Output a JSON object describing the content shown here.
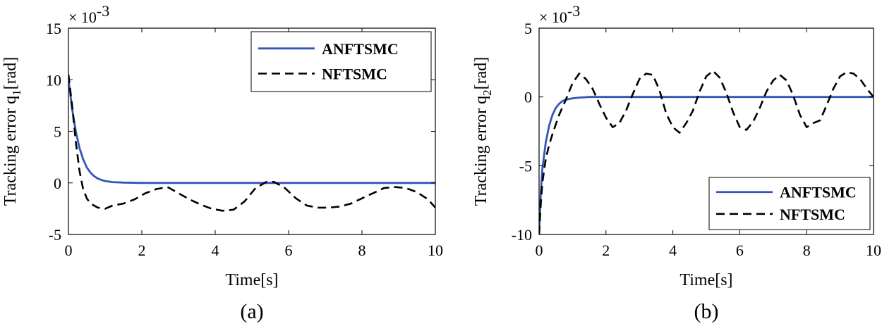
{
  "chart_data": [
    {
      "type": "line",
      "panel_label": "(a)",
      "xlabel": "Time[s]",
      "ylabel_main": "Tracking error q",
      "ylabel_sub": "1",
      "ylabel_unit": "[rad]",
      "scale_base": "× 10",
      "scale_exp": "-3",
      "xlim": [
        0,
        10
      ],
      "ylim": [
        -5,
        15
      ],
      "xticks": [
        0,
        2,
        4,
        6,
        8,
        10
      ],
      "yticks": [
        -5,
        0,
        5,
        10,
        15
      ],
      "legend": [
        "ANFTSMC",
        "NFTSMC"
      ],
      "legend_position": "top-right",
      "series": [
        {
          "name": "ANFTSMC",
          "color": "#3355b8",
          "style": "solid",
          "x": [
            0,
            0.1,
            0.2,
            0.3,
            0.4,
            0.5,
            0.6,
            0.7,
            0.8,
            0.9,
            1.0,
            1.2,
            1.5,
            2.0,
            3.0,
            4.0,
            5.0,
            6.0,
            7.0,
            8.0,
            9.0,
            10.0
          ],
          "y": [
            10.0,
            7.2,
            5.0,
            3.4,
            2.3,
            1.5,
            1.0,
            0.65,
            0.42,
            0.28,
            0.18,
            0.08,
            0.03,
            0.0,
            0.0,
            0.0,
            0.0,
            0.0,
            0.0,
            0.0,
            0.0,
            0.0
          ]
        },
        {
          "name": "NFTSMC",
          "color": "#000000",
          "style": "dashed",
          "x": [
            0,
            0.1,
            0.2,
            0.3,
            0.4,
            0.5,
            0.6,
            0.8,
            1.0,
            1.2,
            1.5,
            1.8,
            2.1,
            2.4,
            2.7,
            3.0,
            3.3,
            3.6,
            3.9,
            4.2,
            4.5,
            4.8,
            5.1,
            5.4,
            5.6,
            5.9,
            6.2,
            6.5,
            6.8,
            7.1,
            7.4,
            7.7,
            8.0,
            8.3,
            8.6,
            8.9,
            9.2,
            9.5,
            9.8,
            10.0
          ],
          "y": [
            10.5,
            7.5,
            4.0,
            1.2,
            -0.6,
            -1.5,
            -2.0,
            -2.4,
            -2.5,
            -2.2,
            -2.0,
            -1.6,
            -1.0,
            -0.6,
            -0.4,
            -1.0,
            -1.6,
            -2.1,
            -2.5,
            -2.7,
            -2.6,
            -1.8,
            -0.5,
            0.1,
            0.1,
            -0.5,
            -1.5,
            -2.2,
            -2.4,
            -2.4,
            -2.3,
            -2.0,
            -1.5,
            -1.0,
            -0.5,
            -0.4,
            -0.5,
            -0.9,
            -1.6,
            -2.4
          ]
        }
      ]
    },
    {
      "type": "line",
      "panel_label": "(b)",
      "xlabel": "Time[s]",
      "ylabel_main": "Tracking error q",
      "ylabel_sub": "2",
      "ylabel_unit": "[rad]",
      "scale_base": "× 10",
      "scale_exp": "-3",
      "xlim": [
        0,
        10
      ],
      "ylim": [
        -10,
        5
      ],
      "xticks": [
        0,
        2,
        4,
        6,
        8,
        10
      ],
      "yticks": [
        -10,
        -5,
        0,
        5
      ],
      "legend": [
        "ANFTSMC",
        "NFTSMC"
      ],
      "legend_position": "bottom-right",
      "series": [
        {
          "name": "ANFTSMC",
          "color": "#3355b8",
          "style": "solid",
          "x": [
            0,
            0.05,
            0.1,
            0.2,
            0.3,
            0.4,
            0.5,
            0.6,
            0.7,
            0.8,
            1.0,
            1.2,
            1.5,
            2.0,
            2.5,
            3.0,
            3.5,
            4.0,
            4.5,
            5.0,
            5.5,
            6.0,
            6.5,
            7.0,
            7.5,
            8.0,
            8.5,
            9.0,
            9.5,
            10.0
          ],
          "y": [
            -10.0,
            -7.0,
            -5.2,
            -3.3,
            -2.1,
            -1.3,
            -0.8,
            -0.5,
            -0.3,
            -0.2,
            -0.1,
            -0.05,
            0.0,
            0.0,
            0.0,
            0.0,
            0.0,
            0.0,
            0.0,
            0.0,
            0.0,
            0.0,
            0.0,
            0.0,
            0.0,
            0.0,
            0.0,
            0.0,
            0.0,
            0.0
          ]
        },
        {
          "name": "NFTSMC",
          "color": "#000000",
          "style": "dashed",
          "x": [
            0,
            0.05,
            0.1,
            0.2,
            0.3,
            0.4,
            0.5,
            0.6,
            0.8,
            1.0,
            1.2,
            1.4,
            1.6,
            1.8,
            2.0,
            2.2,
            2.4,
            2.6,
            2.8,
            3.0,
            3.2,
            3.4,
            3.6,
            3.8,
            4.0,
            4.2,
            4.4,
            4.6,
            4.8,
            5.0,
            5.2,
            5.4,
            5.6,
            5.8,
            6.0,
            6.2,
            6.4,
            6.6,
            6.8,
            7.0,
            7.2,
            7.4,
            7.6,
            7.8,
            8.0,
            8.2,
            8.4,
            8.6,
            8.8,
            9.0,
            9.2,
            9.4,
            9.6,
            9.8,
            10.0
          ],
          "y": [
            -10.0,
            -7.8,
            -6.2,
            -4.5,
            -3.5,
            -2.7,
            -2.0,
            -1.3,
            -0.2,
            1.0,
            1.7,
            1.3,
            0.6,
            -0.5,
            -1.5,
            -2.2,
            -1.9,
            -1.0,
            0.2,
            1.3,
            1.7,
            1.6,
            0.5,
            -1.2,
            -2.2,
            -2.6,
            -1.9,
            -1.0,
            0.4,
            1.5,
            1.9,
            1.4,
            0.3,
            -1.1,
            -2.2,
            -2.4,
            -1.8,
            -0.8,
            0.4,
            1.2,
            1.6,
            1.2,
            0.1,
            -1.3,
            -2.2,
            -1.9,
            -1.7,
            -0.6,
            0.6,
            1.5,
            1.8,
            1.7,
            1.3,
            0.6,
            0.0
          ]
        }
      ]
    }
  ]
}
